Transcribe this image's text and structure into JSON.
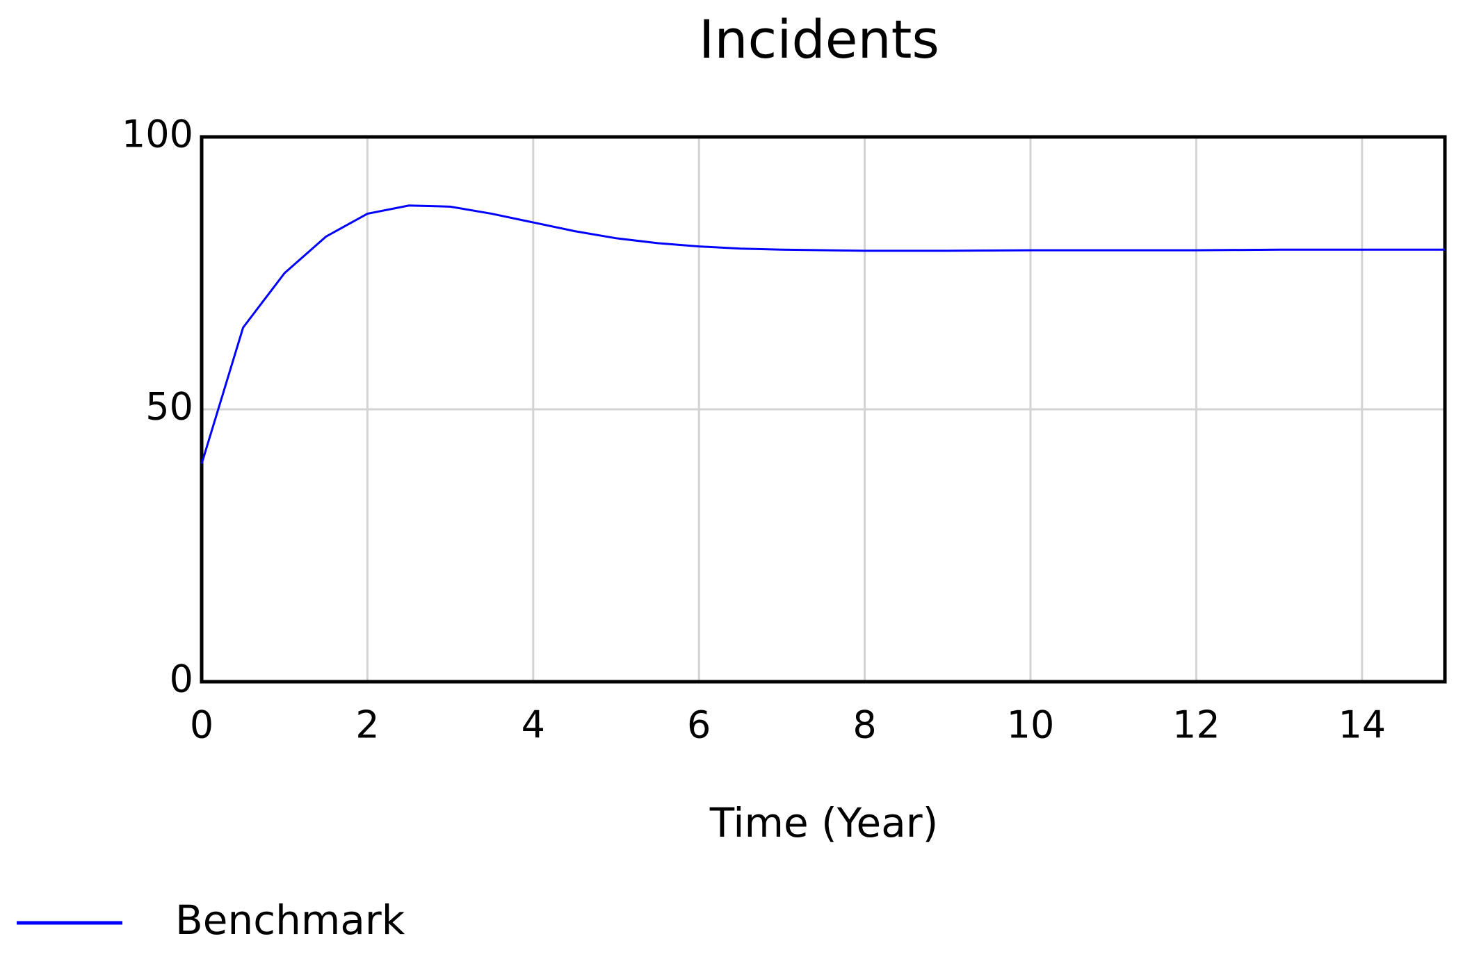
{
  "chart_data": {
    "type": "line",
    "title": "Incidents",
    "xlabel": "Time (Year)",
    "x": [
      0,
      0.5,
      1,
      1.5,
      2,
      2.5,
      3,
      3.5,
      4,
      4.5,
      5,
      5.5,
      6,
      6.5,
      7,
      8,
      9,
      10,
      11,
      12,
      13,
      14,
      15
    ],
    "series": [
      {
        "name": "Benchmark",
        "color": "#0000ff",
        "values": [
          40,
          65,
          75,
          81.7,
          85.9,
          87.4,
          87.2,
          85.9,
          84.3,
          82.7,
          81.4,
          80.5,
          79.9,
          79.5,
          79.3,
          79.1,
          79.1,
          79.2,
          79.2,
          79.2,
          79.3,
          79.3,
          79.3
        ]
      }
    ],
    "xlim": [
      0,
      15
    ],
    "xticks": [
      0,
      2,
      4,
      6,
      8,
      10,
      12,
      14
    ],
    "ylim": [
      0,
      100
    ],
    "yticks": [
      0,
      50,
      100
    ],
    "grid": true
  }
}
